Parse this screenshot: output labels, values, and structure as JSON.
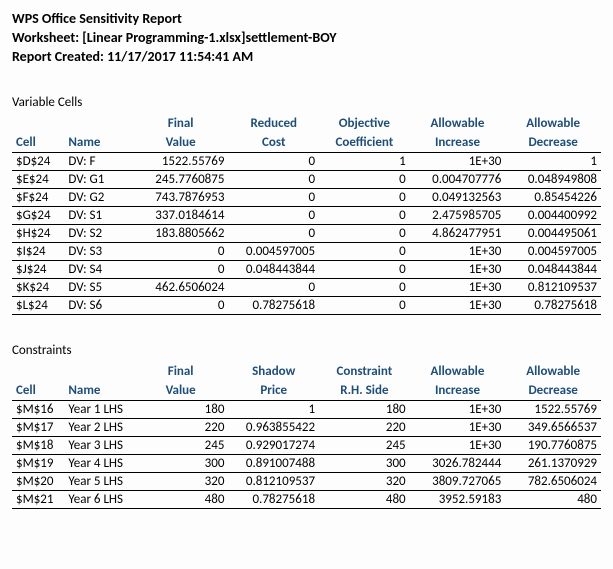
{
  "header": {
    "title": "WPS Office Sensitivity Report",
    "worksheet": "Worksheet: [Linear Programming-1.xlsx]settlement-BOY",
    "created": "Report Created: 11/17/2017 11:54:41 AM"
  },
  "variable_section": {
    "title": "Variable Cells",
    "headers": {
      "cell": "Cell",
      "name": "Name",
      "final1": "Final",
      "final2": "Value",
      "reduced1": "Reduced",
      "reduced2": "Cost",
      "obj1": "Objective",
      "obj2": "Coefficient",
      "inc1": "Allowable",
      "inc2": "Increase",
      "dec1": "Allowable",
      "dec2": "Decrease"
    },
    "rows": [
      {
        "cell": "$D$24",
        "name": "DV:  F",
        "final": "1522.55769",
        "reduced": "0",
        "obj": "1",
        "inc": "1E+30",
        "dec": "1"
      },
      {
        "cell": "$E$24",
        "name": "DV:  G1",
        "final": "245.7760875",
        "reduced": "0",
        "obj": "0",
        "inc": "0.004707776",
        "dec": "0.048949808"
      },
      {
        "cell": "$F$24",
        "name": "DV:  G2",
        "final": "743.7876953",
        "reduced": "0",
        "obj": "0",
        "inc": "0.049132563",
        "dec": "0.85454226"
      },
      {
        "cell": "$G$24",
        "name": "DV:  S1",
        "final": "337.0184614",
        "reduced": "0",
        "obj": "0",
        "inc": "2.475985705",
        "dec": "0.004400992"
      },
      {
        "cell": "$H$24",
        "name": "DV:  S2",
        "final": "183.8805662",
        "reduced": "0",
        "obj": "0",
        "inc": "4.862477951",
        "dec": "0.004495061"
      },
      {
        "cell": "$I$24",
        "name": "DV:  S3",
        "final": "0",
        "reduced": "0.004597005",
        "obj": "0",
        "inc": "1E+30",
        "dec": "0.004597005"
      },
      {
        "cell": "$J$24",
        "name": "DV:  S4",
        "final": "0",
        "reduced": "0.048443844",
        "obj": "0",
        "inc": "1E+30",
        "dec": "0.048443844"
      },
      {
        "cell": "$K$24",
        "name": "DV:  S5",
        "final": "462.6506024",
        "reduced": "0",
        "obj": "0",
        "inc": "1E+30",
        "dec": "0.812109537"
      },
      {
        "cell": "$L$24",
        "name": "DV:  S6",
        "final": "0",
        "reduced": "0.78275618",
        "obj": "0",
        "inc": "1E+30",
        "dec": "0.78275618"
      }
    ]
  },
  "constraint_section": {
    "title": "Constraints",
    "headers": {
      "cell": "Cell",
      "name": "Name",
      "final1": "Final",
      "final2": "Value",
      "shadow1": "Shadow",
      "shadow2": "Price",
      "rhs1": "Constraint",
      "rhs2": "R.H. Side",
      "inc1": "Allowable",
      "inc2": "Increase",
      "dec1": "Allowable",
      "dec2": "Decrease"
    },
    "rows": [
      {
        "cell": "$M$16",
        "name": "Year 1 LHS",
        "final": "180",
        "shadow": "1",
        "rhs": "180",
        "inc": "1E+30",
        "dec": "1522.55769"
      },
      {
        "cell": "$M$17",
        "name": "Year 2 LHS",
        "final": "220",
        "shadow": "0.963855422",
        "rhs": "220",
        "inc": "1E+30",
        "dec": "349.6566537"
      },
      {
        "cell": "$M$18",
        "name": "Year 3 LHS",
        "final": "245",
        "shadow": "0.929017274",
        "rhs": "245",
        "inc": "1E+30",
        "dec": "190.7760875"
      },
      {
        "cell": "$M$19",
        "name": "Year 4 LHS",
        "final": "300",
        "shadow": "0.891007488",
        "rhs": "300",
        "inc": "3026.782444",
        "dec": "261.1370929"
      },
      {
        "cell": "$M$20",
        "name": "Year 5 LHS",
        "final": "320",
        "shadow": "0.812109537",
        "rhs": "320",
        "inc": "3809.727065",
        "dec": "782.6506024"
      },
      {
        "cell": "$M$21",
        "name": "Year 6 LHS",
        "final": "480",
        "shadow": "0.78275618",
        "rhs": "480",
        "inc": "3952.59183",
        "dec": "480"
      }
    ]
  }
}
